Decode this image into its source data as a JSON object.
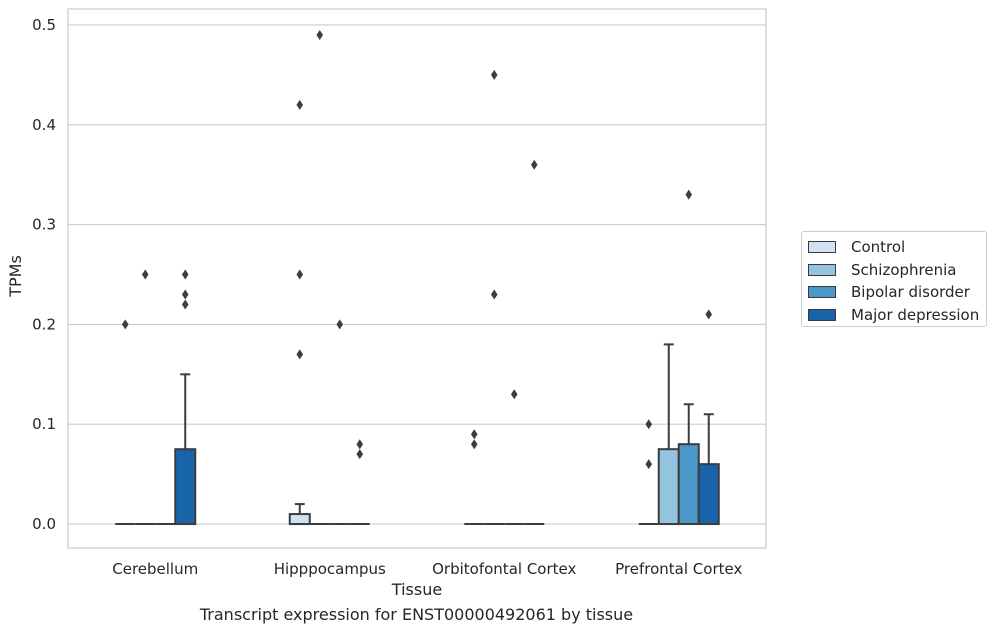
{
  "chart_data": {
    "type": "box",
    "caption": "Transcript expression for ENST00000492061 by tissue",
    "xlabel": "Tissue",
    "ylabel": "TPMs",
    "ylim": [
      -0.024,
      0.516
    ],
    "yticks": [
      "0.0",
      "0.1",
      "0.2",
      "0.3",
      "0.4",
      "0.5"
    ],
    "categories": [
      "Cerebellum",
      "Hipppocampus",
      "Orbitofontal Cortex",
      "Prefrontal Cortex"
    ],
    "grid": "horizontal",
    "legend_position": "right",
    "series": [
      {
        "name": "Control",
        "color": "#d0e1f2",
        "boxes": [
          {
            "q1": 0,
            "median": 0,
            "q3": 0,
            "whisker_high": 0,
            "outliers": [
              0.2
            ]
          },
          {
            "q1": 0,
            "median": 0,
            "q3": 0.01,
            "whisker_high": 0.02,
            "outliers": [
              0.17,
              0.25,
              0.42
            ]
          },
          {
            "q1": 0,
            "median": 0,
            "q3": 0,
            "whisker_high": 0,
            "outliers": [
              0.08,
              0.09
            ]
          },
          {
            "q1": 0,
            "median": 0,
            "q3": 0,
            "whisker_high": 0,
            "outliers": [
              0.06,
              0.1
            ]
          }
        ]
      },
      {
        "name": "Schizophrenia",
        "color": "#94c4df",
        "boxes": [
          {
            "q1": 0,
            "median": 0,
            "q3": 0,
            "whisker_high": 0,
            "outliers": [
              0.25
            ]
          },
          {
            "q1": 0,
            "median": 0,
            "q3": 0,
            "whisker_high": 0,
            "outliers": [
              0.49
            ]
          },
          {
            "q1": 0,
            "median": 0,
            "q3": 0,
            "whisker_high": 0,
            "outliers": [
              0.23,
              0.45
            ]
          },
          {
            "q1": 0,
            "median": 0,
            "q3": 0.075,
            "whisker_high": 0.18,
            "outliers": []
          }
        ]
      },
      {
        "name": "Bipolar disorder",
        "color": "#4a98c9",
        "boxes": [
          {
            "q1": 0,
            "median": 0,
            "q3": 0,
            "whisker_high": 0,
            "outliers": []
          },
          {
            "q1": 0,
            "median": 0,
            "q3": 0,
            "whisker_high": 0,
            "outliers": [
              0.2
            ]
          },
          {
            "q1": 0,
            "median": 0,
            "q3": 0,
            "whisker_high": 0,
            "outliers": [
              0.13
            ]
          },
          {
            "q1": 0,
            "median": 0,
            "q3": 0.08,
            "whisker_high": 0.12,
            "outliers": [
              0.33
            ]
          }
        ]
      },
      {
        "name": "Major depression",
        "color": "#1764ab",
        "boxes": [
          {
            "q1": 0,
            "median": 0,
            "q3": 0.075,
            "whisker_high": 0.15,
            "outliers": [
              0.22,
              0.23,
              0.25
            ]
          },
          {
            "q1": 0,
            "median": 0,
            "q3": 0,
            "whisker_high": 0,
            "outliers": [
              0.07,
              0.08
            ]
          },
          {
            "q1": 0,
            "median": 0,
            "q3": 0,
            "whisker_high": 0,
            "outliers": [
              0.36
            ]
          },
          {
            "q1": 0,
            "median": 0,
            "q3": 0.06,
            "whisker_high": 0.11,
            "outliers": [
              0.21
            ]
          }
        ]
      }
    ]
  }
}
